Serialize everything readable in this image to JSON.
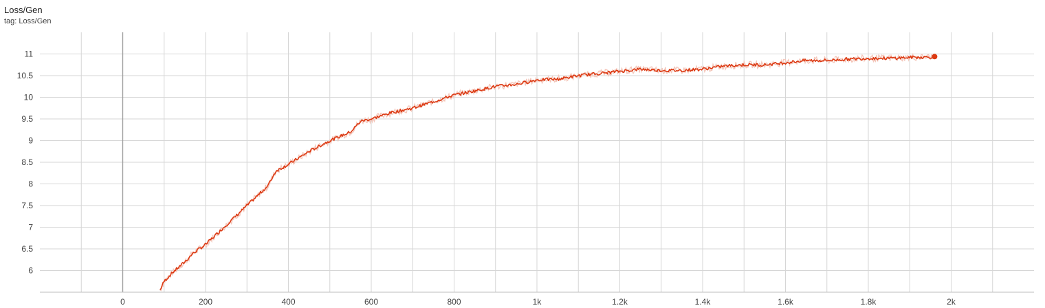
{
  "card": {
    "title": "Loss/Gen",
    "subtitle": "tag: Loss/Gen"
  },
  "colors": {
    "smoothed": "#dc3912",
    "raw": "#f4c7bb",
    "grid": "#d6d6d6",
    "zero_line": "#9e9e9e"
  },
  "chart_data": {
    "type": "line",
    "title": "Loss/Gen",
    "xlabel": "",
    "ylabel": "",
    "xlim": [
      -200,
      2200
    ],
    "ylim": [
      5.5,
      11.5
    ],
    "x_ticks": [
      0,
      200,
      400,
      600,
      800,
      1000,
      1200,
      1400,
      1600,
      1800,
      2000
    ],
    "x_tick_labels": [
      "0",
      "200",
      "400",
      "600",
      "800",
      "1k",
      "1.2k",
      "1.4k",
      "1.6k",
      "1.8k",
      "2k"
    ],
    "y_ticks": [
      6,
      6.5,
      7,
      7.5,
      8,
      8.5,
      9,
      9.5,
      10,
      10.5,
      11
    ],
    "y_tick_labels": [
      "6",
      "6.5",
      "7",
      "7.5",
      "8",
      "8.5",
      "9",
      "9.5",
      "10",
      "10.5",
      "11"
    ],
    "grid": true,
    "series": [
      {
        "x": [
          90,
          100,
          120,
          150,
          170,
          200,
          250,
          300,
          350,
          370,
          400,
          450,
          500,
          550,
          575,
          600,
          650,
          700,
          750,
          800,
          850,
          900,
          950,
          1000,
          1050,
          1100,
          1150,
          1200,
          1250,
          1300,
          1350,
          1400,
          1450,
          1500,
          1550,
          1600,
          1650,
          1700,
          1750,
          1800,
          1850,
          1900,
          1950,
          1960
        ],
        "y": [
          5.55,
          5.75,
          5.95,
          6.2,
          6.4,
          6.6,
          7.05,
          7.5,
          7.95,
          8.3,
          8.45,
          8.75,
          9.0,
          9.2,
          9.45,
          9.5,
          9.65,
          9.75,
          9.9,
          10.05,
          10.15,
          10.25,
          10.3,
          10.4,
          10.42,
          10.5,
          10.55,
          10.6,
          10.65,
          10.62,
          10.62,
          10.65,
          10.72,
          10.75,
          10.75,
          10.8,
          10.85,
          10.85,
          10.88,
          10.9,
          10.9,
          10.92,
          10.93,
          10.94
        ]
      }
    ]
  }
}
